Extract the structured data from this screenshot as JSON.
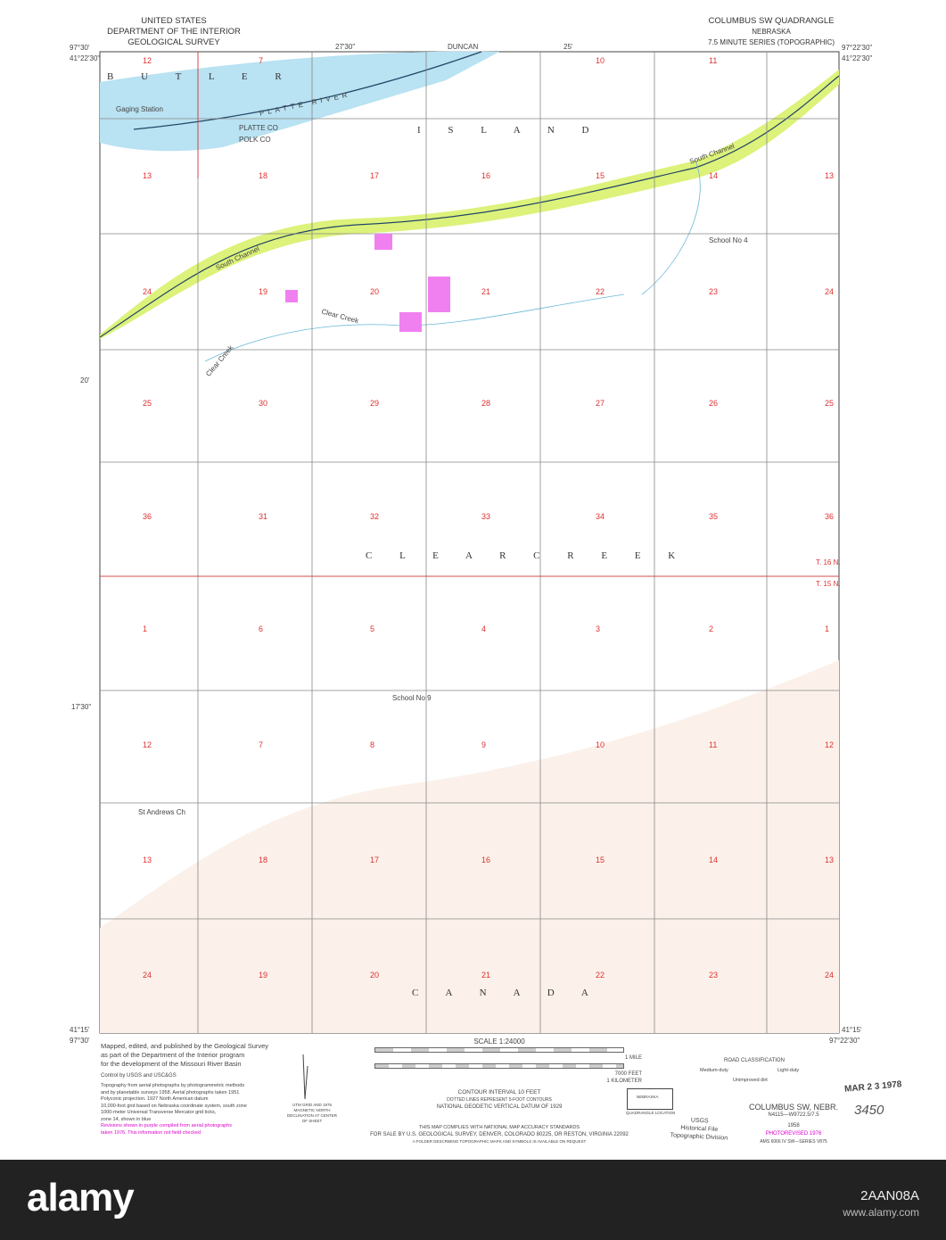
{
  "header": {
    "agency": [
      "UNITED STATES",
      "DEPARTMENT OF THE INTERIOR",
      "GEOLOGICAL SURVEY"
    ],
    "quad_title": "COLUMBUS SW QUADRANGLE",
    "state": "NEBRASKA",
    "series": "7.5 MINUTE SERIES (TOPOGRAPHIC)"
  },
  "coords": {
    "nw_lon": "97°30'",
    "nw_lat": "41°22'30\"",
    "ne_lon": "97°22'30\"",
    "ne_lat": "41°22'30\"",
    "sw_lon": "97°30'",
    "sw_lat": "41°15'",
    "se_lon": "97°22'30\"",
    "se_lat": "41°15'",
    "mid_lat": "20'",
    "mid_lat2": "17'30\"",
    "mid_lon": "27'30\"",
    "mid_lon2": "25'"
  },
  "places": {
    "county_north": "B U T L E R",
    "island": "I S L A N D",
    "township": "C L E A R   C R E E K",
    "canada": "C A N A D A",
    "river": "PLATTE RIVER",
    "county_line1": "PLATTE CO",
    "county_line2": "POLK CO",
    "south_channel": "South Channel",
    "clear_creek": "Clear Creek",
    "school4": "School No 4",
    "school9": "School No 9",
    "church": "St Andrews Ch",
    "gaging": "Gaging Station",
    "t16": "T. 16 N.",
    "t15": "T. 15 N.",
    "duncan": "DUNCAN"
  },
  "sections": [
    [
      "12",
      "7",
      "10",
      "11"
    ],
    [
      "13",
      "18",
      "17",
      "16",
      "15",
      "14",
      "13"
    ],
    [
      "24",
      "19",
      "20",
      "21",
      "22",
      "23",
      "24"
    ],
    [
      "25",
      "30",
      "29",
      "28",
      "27",
      "26",
      "25"
    ],
    [
      "36",
      "31",
      "32",
      "33",
      "34",
      "35",
      "36"
    ],
    [
      "1",
      "6",
      "5",
      "4",
      "3",
      "2",
      "1"
    ],
    [
      "12",
      "7",
      "8",
      "9",
      "10",
      "11",
      "12"
    ],
    [
      "13",
      "18",
      "17",
      "16",
      "15",
      "14",
      "13"
    ],
    [
      "24",
      "19",
      "20",
      "21",
      "22",
      "23",
      "24"
    ]
  ],
  "footer": {
    "credits": [
      "Mapped, edited, and published by the Geological Survey",
      "as part of the Department of the Interior program",
      "for the development of the Missouri River Basin"
    ],
    "control": "Control by USGS and USC&GS",
    "notes": [
      "Topography from aerial photographs by photogrammetric methods",
      "and by planetable surveys 1958. Aerial photographs taken 1951",
      "Polyconic projection. 1927 North American datum",
      "10,000-foot grid based on Nebraska coordinate system, south zone",
      "1000-meter Universal Transverse Mercator grid ticks,",
      "zone 14, shown in blue"
    ],
    "revision": [
      "Revisions shown in purple compiled from aerial photographs",
      "taken 1976. This information not field checked"
    ],
    "declination": "UTM GRID AND 1976 MAGNETIC NORTH DECLINATION AT CENTER OF SHEET",
    "scale": "SCALE 1:24000",
    "scale_mile": "1 MILE",
    "scale_feet": "7000 FEET",
    "scale_km": "1 KILOMETER",
    "contour": "CONTOUR INTERVAL 10 FEET",
    "dotted": "DOTTED LINES REPRESENT 5-FOOT CONTOURS",
    "datum": "NATIONAL GEODETIC VERTICAL DATUM OF 1929",
    "accuracy": "THIS MAP COMPLIES WITH NATIONAL MAP ACCURACY STANDARDS",
    "sale": "FOR SALE BY U.S. GEOLOGICAL SURVEY, DENVER, COLORADO 80225, OR RESTON, VIRGINIA 22092",
    "folder": "A FOLDER DESCRIBING TOPOGRAPHIC MAPS AND SYMBOLS IS AVAILABLE ON REQUEST",
    "road_title": "ROAD CLASSIFICATION",
    "road_medium": "Medium-duty",
    "road_light": "Light-duty",
    "road_dirt": "Unimproved dirt",
    "locator": "NEBRASKA",
    "locator_label": "QUADRANGLE LOCATION",
    "stamp_date": "MAR 2 3 1978",
    "handwritten": "3450",
    "file_stamp": [
      "USGS",
      "Historical File",
      "Topographic Division"
    ],
    "name": "COLUMBUS SW, NEBR.",
    "code": "N4115—W9722.5/7.5",
    "year": "1958",
    "photorevised": "PHOTOREVISED 1976",
    "ams": "AMS 6066 IV SW—SERIES V875"
  },
  "watermark": {
    "logo": "alamy",
    "id": "2AAN08A",
    "url": "www.alamy.com"
  },
  "colors": {
    "water": "#b9e2f2",
    "woodland": "#dcf27a",
    "contour": "#e0a080",
    "red": "#e03030",
    "purple": "#e060e0"
  }
}
